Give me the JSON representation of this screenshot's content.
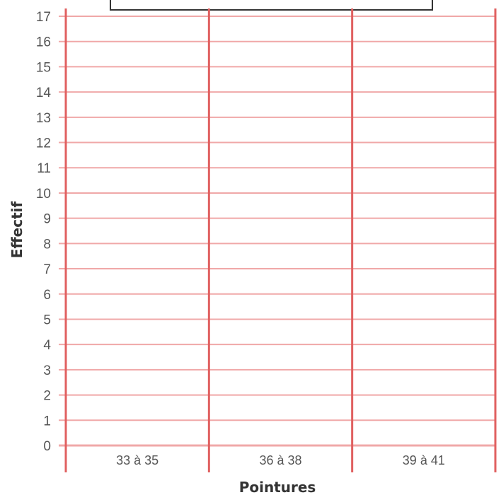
{
  "chart_data": {
    "type": "bar",
    "title": "",
    "categories": [
      "33 à 35",
      "36 à 38",
      "39 à 41"
    ],
    "values": [
      null,
      null,
      null
    ],
    "xlabel": "Pointures",
    "ylabel": "Effectif",
    "ylim": [
      0,
      17
    ],
    "yticks": [
      0,
      1,
      2,
      3,
      4,
      5,
      6,
      7,
      8,
      9,
      10,
      11,
      12,
      13,
      14,
      15,
      16,
      17
    ],
    "grid": true,
    "colors": {
      "grid": "#f0a8a8",
      "divider": "#e06060",
      "frame": "#333333"
    }
  }
}
